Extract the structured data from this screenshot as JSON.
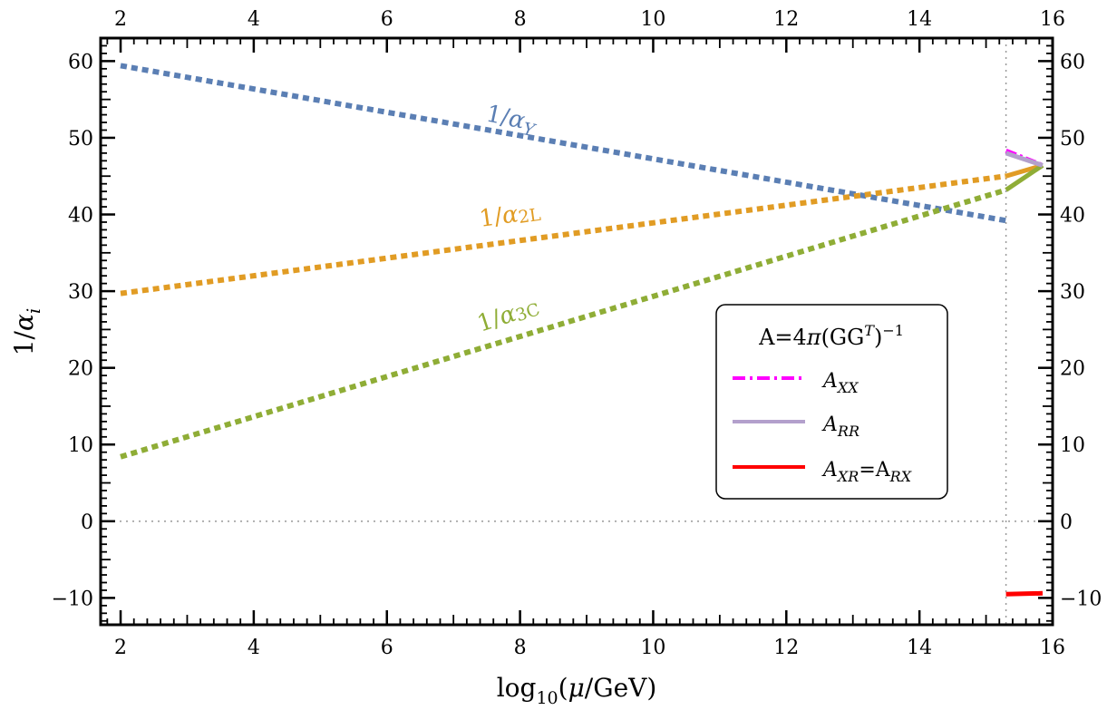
{
  "chart_data": {
    "type": "line",
    "xlabel": "log₁₀(μ/GeV)",
    "ylabel": "1/αᵢ",
    "xlim": [
      1.7,
      16
    ],
    "ylim": [
      -13.5,
      63
    ],
    "x_ticks": [
      2,
      4,
      6,
      8,
      10,
      12,
      14,
      16
    ],
    "y_ticks": [
      -10,
      0,
      10,
      20,
      30,
      40,
      50,
      60
    ],
    "x_tick_labels": [
      "2",
      "4",
      "6",
      "8",
      "10",
      "12",
      "14",
      "16"
    ],
    "y_tick_labels": [
      "−10",
      "0",
      "10",
      "20",
      "30",
      "40",
      "50",
      "60"
    ],
    "vertical_line_x": 15.3,
    "horizontal_line_y": 0,
    "series": [
      {
        "label": "1/αY",
        "color": "#5b7fb4",
        "style": "dotted",
        "x": [
          2,
          15.3
        ],
        "y": [
          59.4,
          39.2
        ]
      },
      {
        "label": "1/α2L",
        "color": "#e19c24",
        "style": "dotted",
        "x": [
          2,
          15.3
        ],
        "y": [
          29.7,
          45.0
        ]
      },
      {
        "label": "1/α3C",
        "color": "#8fad36",
        "style": "dotted",
        "x": [
          2,
          15.3
        ],
        "y": [
          8.4,
          43.2
        ]
      },
      {
        "color": "#e19c24",
        "style": "solid",
        "x": [
          15.3,
          15.85
        ],
        "y": [
          45.0,
          46.4
        ]
      },
      {
        "color": "#8fad36",
        "style": "solid",
        "x": [
          15.3,
          15.85
        ],
        "y": [
          43.2,
          46.4
        ]
      },
      {
        "name": "A_XX",
        "color": "#ff00ff",
        "style": "dashdot",
        "x": [
          15.3,
          15.85
        ],
        "y": [
          48.3,
          46.4
        ]
      },
      {
        "name": "A_RR",
        "color": "#b3a0cc",
        "style": "solid",
        "x": [
          15.3,
          15.85
        ],
        "y": [
          48.0,
          46.4
        ]
      },
      {
        "name": "A_XR=A_RX",
        "color": "#ff0000",
        "style": "solid",
        "x": [
          15.3,
          15.85
        ],
        "y": [
          -9.5,
          -9.4
        ]
      }
    ],
    "legend": {
      "placement": "center-right",
      "title": "A=4π(GGᵀ)⁻¹",
      "entries": [
        "A_XX",
        "A_RR",
        "A_XR=A_RX"
      ]
    }
  }
}
